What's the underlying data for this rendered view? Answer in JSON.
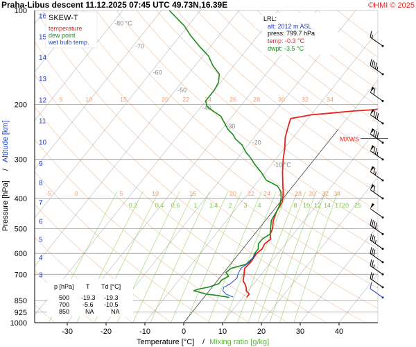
{
  "header": {
    "title": "Praha-Libus   descent   11.12.2025 07:45 UTC  49.73N,16.39E",
    "copyright": "©HMI © 2025"
  },
  "legend": {
    "title": "SKEW-T",
    "items": [
      {
        "label": "temperature",
        "color": "#e8201e"
      },
      {
        "label": "dew point",
        "color": "#1a8c1a"
      },
      {
        "label": "wet bulb temp.",
        "color": "#1e4fd8"
      }
    ]
  },
  "lrl_box": {
    "title": "LRL:",
    "lines": [
      {
        "text": "alt: 2012 m ASL",
        "color": "#1e3cc8"
      },
      {
        "text": "press: 799.7 hPa",
        "color": "#000000"
      },
      {
        "text": "temp: -0.3 °C",
        "color": "#e8201e"
      },
      {
        "text": "dwpt: -3.5 °C",
        "color": "#1a8c1a"
      }
    ]
  },
  "table_box": {
    "headers": [
      "p [hPa]",
      "T",
      "Td [°C]"
    ],
    "rows": [
      [
        "500",
        "-19.3",
        "-19.3"
      ],
      [
        "700",
        "-5.6",
        "-10.5"
      ],
      [
        "850",
        "NA",
        "NA"
      ]
    ]
  },
  "axes": {
    "xlabel_temp": "Temperature [°C]",
    "xlabel_sep": "/",
    "xlabel_mix": "Mixing ratio [g/kg]",
    "ylabel_pres": "Pressure [hPa]",
    "ylabel_sep": "/",
    "ylabel_alt": "Altitude [km]"
  },
  "colors": {
    "temperature": "#e8201e",
    "dewpoint": "#1a8c1a",
    "wetbulb": "#1e4fd8",
    "isobar": "#9a9a9a",
    "isotherm": "#6e6e6e",
    "dry_adiabat": "#f4c8a8",
    "mixing_ratio": "#a8d880",
    "altitude": "#1e3cc8",
    "mxws": "#e8201e"
  },
  "chart_data": {
    "type": "skew-t",
    "xlim": [
      -37,
      45
    ],
    "ylim": [
      1000,
      100
    ],
    "x_ticks": [
      -30,
      -20,
      -10,
      0,
      10,
      20,
      30,
      40
    ],
    "pressure_ticks": [
      100,
      200,
      300,
      400,
      500,
      600,
      700,
      850,
      925,
      1000
    ],
    "altitude_ticks_km": [
      {
        "label": "16",
        "p": 104
      },
      {
        "label": "15",
        "p": 121
      },
      {
        "label": "14",
        "p": 141
      },
      {
        "label": "13",
        "p": 165
      },
      {
        "label": "12",
        "p": 193
      },
      {
        "label": "11",
        "p": 225
      },
      {
        "label": "10",
        "p": 264
      },
      {
        "label": "9",
        "p": 308
      },
      {
        "label": "8",
        "p": 356
      },
      {
        "label": "7",
        "p": 410
      },
      {
        "label": "6",
        "p": 472
      },
      {
        "label": "5",
        "p": 540
      },
      {
        "label": "4",
        "p": 616
      },
      {
        "label": "3",
        "p": 700
      }
    ],
    "isotherm_labels": [
      {
        "text": "-80 °C",
        "p": 110
      },
      {
        "text": "-70",
        "p": 130
      },
      {
        "text": "-60",
        "p": 158
      },
      {
        "text": "-50",
        "p": 180
      },
      {
        "text": "-40",
        "p": 205
      },
      {
        "text": "-30",
        "p": 235
      },
      {
        "text": "-20",
        "p": 265
      },
      {
        "text": "-10 °C",
        "p": 312
      }
    ],
    "dry_adiabat_row_200": [
      "5",
      "10",
      "15",
      "20",
      "22",
      "24",
      "26",
      "28",
      "30",
      "32",
      "34"
    ],
    "dry_adiabat_row_400": [
      "-5",
      "0",
      "5",
      "10",
      "15",
      "20",
      "22",
      "24",
      "26",
      "28",
      "30",
      "32",
      "34"
    ],
    "mixing_ratio_labels": [
      "0.2",
      "0.4",
      "0.6",
      "1",
      "1.4",
      "2",
      "3",
      "4",
      "6",
      "8",
      "10",
      "12",
      "14",
      "17",
      "20",
      "25"
    ],
    "mxws_label": "MXWS",
    "series": [
      {
        "name": "temperature",
        "points": [
          [
            828,
            11.0
          ],
          [
            810,
            11.0
          ],
          [
            790,
            9.5
          ],
          [
            775,
            9.0
          ],
          [
            755,
            8.0
          ],
          [
            735,
            6.7
          ],
          [
            700,
            5.6
          ],
          [
            670,
            4.5
          ],
          [
            640,
            4.8
          ],
          [
            600,
            4.5
          ],
          [
            580,
            5.0
          ],
          [
            560,
            4.6
          ],
          [
            540,
            5.2
          ],
          [
            520,
            4.0
          ],
          [
            500,
            3.5
          ],
          [
            470,
            2.0
          ],
          [
            440,
            1.0
          ],
          [
            410,
            0.5
          ],
          [
            385,
            -1.0
          ],
          [
            360,
            -3.0
          ],
          [
            330,
            -5.5
          ],
          [
            300,
            -8.0
          ],
          [
            275,
            -10.0
          ],
          [
            255,
            -12.0
          ],
          [
            235,
            -13.5
          ],
          [
            222,
            -14.5
          ],
          [
            216,
            -10.0
          ],
          [
            213,
            -5.0
          ],
          [
            210,
            0.0
          ],
          [
            208,
            5.0
          ],
          [
            205,
            8.0
          ],
          [
            200,
            10.0
          ],
          [
            192,
            12.5
          ],
          [
            183,
            14.0
          ],
          [
            172,
            15.0
          ],
          [
            163,
            17.0
          ],
          [
            155,
            19.0
          ],
          [
            148,
            21.0
          ],
          [
            140,
            22.5
          ],
          [
            130,
            24.0
          ],
          [
            122,
            26.0
          ],
          [
            115,
            27.5
          ],
          [
            110,
            27.5
          ],
          [
            105,
            29.0
          ],
          [
            100,
            31.5
          ]
        ]
      },
      {
        "name": "dew point",
        "points": [
          [
            830,
            6.5
          ],
          [
            818,
            3.0
          ],
          [
            810,
            0.0
          ],
          [
            800,
            -2.0
          ],
          [
            790,
            -4.0
          ],
          [
            780,
            -3.0
          ],
          [
            770,
            -1.0
          ],
          [
            750,
            1.0
          ],
          [
            730,
            1.0
          ],
          [
            710,
            2.0
          ],
          [
            690,
            0.5
          ],
          [
            670,
            1.0
          ],
          [
            650,
            4.0
          ],
          [
            620,
            4.5
          ],
          [
            600,
            4.0
          ],
          [
            580,
            4.0
          ],
          [
            560,
            3.0
          ],
          [
            540,
            3.0
          ],
          [
            520,
            4.0
          ],
          [
            500,
            3.0
          ],
          [
            470,
            1.5
          ],
          [
            440,
            1.0
          ],
          [
            420,
            0.5
          ],
          [
            400,
            -0.5
          ],
          [
            380,
            -2.0
          ],
          [
            365,
            -4.0
          ],
          [
            350,
            -8.0
          ],
          [
            330,
            -11.0
          ],
          [
            310,
            -14.5
          ],
          [
            295,
            -17.0
          ],
          [
            285,
            -19.0
          ],
          [
            270,
            -21.5
          ],
          [
            258,
            -24.5
          ],
          [
            250,
            -26.0
          ],
          [
            240,
            -28.5
          ],
          [
            230,
            -30.5
          ],
          [
            218,
            -33.0
          ],
          [
            210,
            -36.0
          ],
          [
            203,
            -38.5
          ],
          [
            195,
            -40.0
          ],
          [
            188,
            -40.0
          ],
          [
            180,
            -40.0
          ],
          [
            170,
            -40.5
          ],
          [
            160,
            -42.0
          ],
          [
            150,
            -45.5
          ],
          [
            140,
            -48.5
          ],
          [
            130,
            -53.0
          ],
          [
            120,
            -57.5
          ],
          [
            112,
            -61.0
          ],
          [
            105,
            -65.0
          ],
          [
            100,
            -68.0
          ]
        ]
      },
      {
        "name": "wet bulb temp.",
        "points": [
          [
            828,
            7.5
          ],
          [
            810,
            5.0
          ],
          [
            790,
            3.5
          ],
          [
            770,
            3.0
          ],
          [
            750,
            4.0
          ],
          [
            720,
            4.5
          ],
          [
            700,
            4.0
          ],
          [
            670,
            3.5
          ],
          [
            640,
            4.5
          ],
          [
            600,
            4.3
          ]
        ]
      }
    ],
    "wind_barbs": [
      {
        "p": 130,
        "speed_kt": 15
      },
      {
        "p": 160,
        "speed_kt": 45
      },
      {
        "p": 195,
        "speed_kt": 60
      },
      {
        "p": 230,
        "speed_kt": 80
      },
      {
        "p": 265,
        "speed_kt": 80
      },
      {
        "p": 300,
        "speed_kt": 75
      },
      {
        "p": 350,
        "speed_kt": 65
      },
      {
        "p": 400,
        "speed_kt": 60
      },
      {
        "p": 460,
        "speed_kt": 50
      },
      {
        "p": 520,
        "speed_kt": 40
      },
      {
        "p": 580,
        "speed_kt": 35
      },
      {
        "p": 640,
        "speed_kt": 30
      },
      {
        "p": 700,
        "speed_kt": 25
      },
      {
        "p": 770,
        "speed_kt": 20
      },
      {
        "p": 830,
        "speed_kt": 10
      }
    ]
  }
}
